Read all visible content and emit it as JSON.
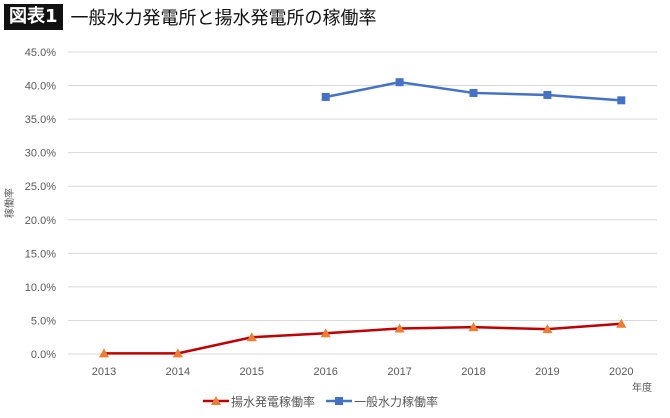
{
  "title": {
    "badge": "図表1",
    "text": "一般水力発電所と揚水発電所の稼働率"
  },
  "chart_data": {
    "type": "line",
    "title": "一般水力発電所と揚水発電所の稼働率",
    "xlabel": "年度",
    "ylabel": "稼働率",
    "categories": [
      "2013",
      "2014",
      "2015",
      "2016",
      "2017",
      "2018",
      "2019",
      "2020"
    ],
    "yticks": [
      "0.0%",
      "5.0%",
      "10.0%",
      "15.0%",
      "20.0%",
      "25.0%",
      "30.0%",
      "35.0%",
      "40.0%",
      "45.0%"
    ],
    "ylim": [
      0,
      45
    ],
    "grid": true,
    "legend_position": "bottom",
    "series": [
      {
        "name": "揚水発電稼働率",
        "color": "#c00000",
        "marker": "triangle",
        "marker_color": "#ed7d31",
        "values": [
          0.1,
          0.1,
          2.5,
          3.1,
          3.8,
          4.0,
          3.7,
          4.5
        ]
      },
      {
        "name": "一般水力稼働率",
        "color": "#4472c4",
        "marker": "square",
        "marker_color": "#4472c4",
        "values": [
          null,
          null,
          null,
          38.3,
          40.5,
          38.9,
          38.6,
          37.8
        ]
      }
    ]
  }
}
